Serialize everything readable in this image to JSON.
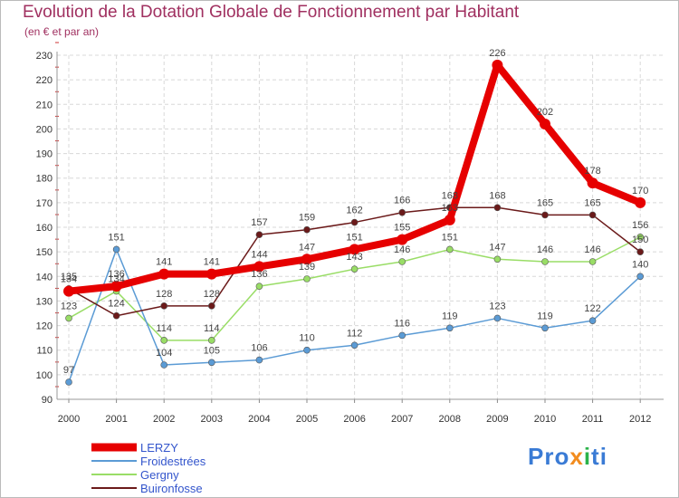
{
  "chart_data": {
    "type": "line",
    "title": "Evolution de la Dotation Globale de Fonctionnement par Habitant",
    "subtitle": "(en € et par an)",
    "xlabel": "",
    "ylabel": "",
    "categories": [
      "2000",
      "2001",
      "2002",
      "2003",
      "2004",
      "2005",
      "2006",
      "2007",
      "2008",
      "2009",
      "2010",
      "2011",
      "2012"
    ],
    "y_ticks": [
      90,
      100,
      110,
      120,
      130,
      140,
      150,
      160,
      170,
      180,
      190,
      200,
      210,
      220,
      230
    ],
    "ylim": [
      90,
      230
    ],
    "grid": true,
    "legend_position": "bottom-left",
    "series": [
      {
        "name": "LERZY",
        "color": "#e60000",
        "values": [
          134,
          136,
          141,
          141,
          144,
          147,
          151,
          155,
          163,
          226,
          202,
          178,
          170
        ]
      },
      {
        "name": "Froidestrées",
        "color": "#5b9bd5",
        "values": [
          97,
          151,
          104,
          105,
          106,
          110,
          112,
          116,
          119,
          123,
          119,
          122,
          140
        ]
      },
      {
        "name": "Gergny",
        "color": "#99dd66",
        "values": [
          123,
          134,
          114,
          114,
          136,
          139,
          143,
          146,
          151,
          147,
          146,
          146,
          156
        ]
      },
      {
        "name": "Buironfosse",
        "color": "#6b1a1a",
        "values": [
          135,
          124,
          128,
          128,
          157,
          159,
          162,
          166,
          168,
          168,
          165,
          165,
          150
        ]
      }
    ]
  },
  "logo": {
    "p1": "Pro",
    "p2": "x",
    "p3": "i",
    "p4": "ti"
  }
}
